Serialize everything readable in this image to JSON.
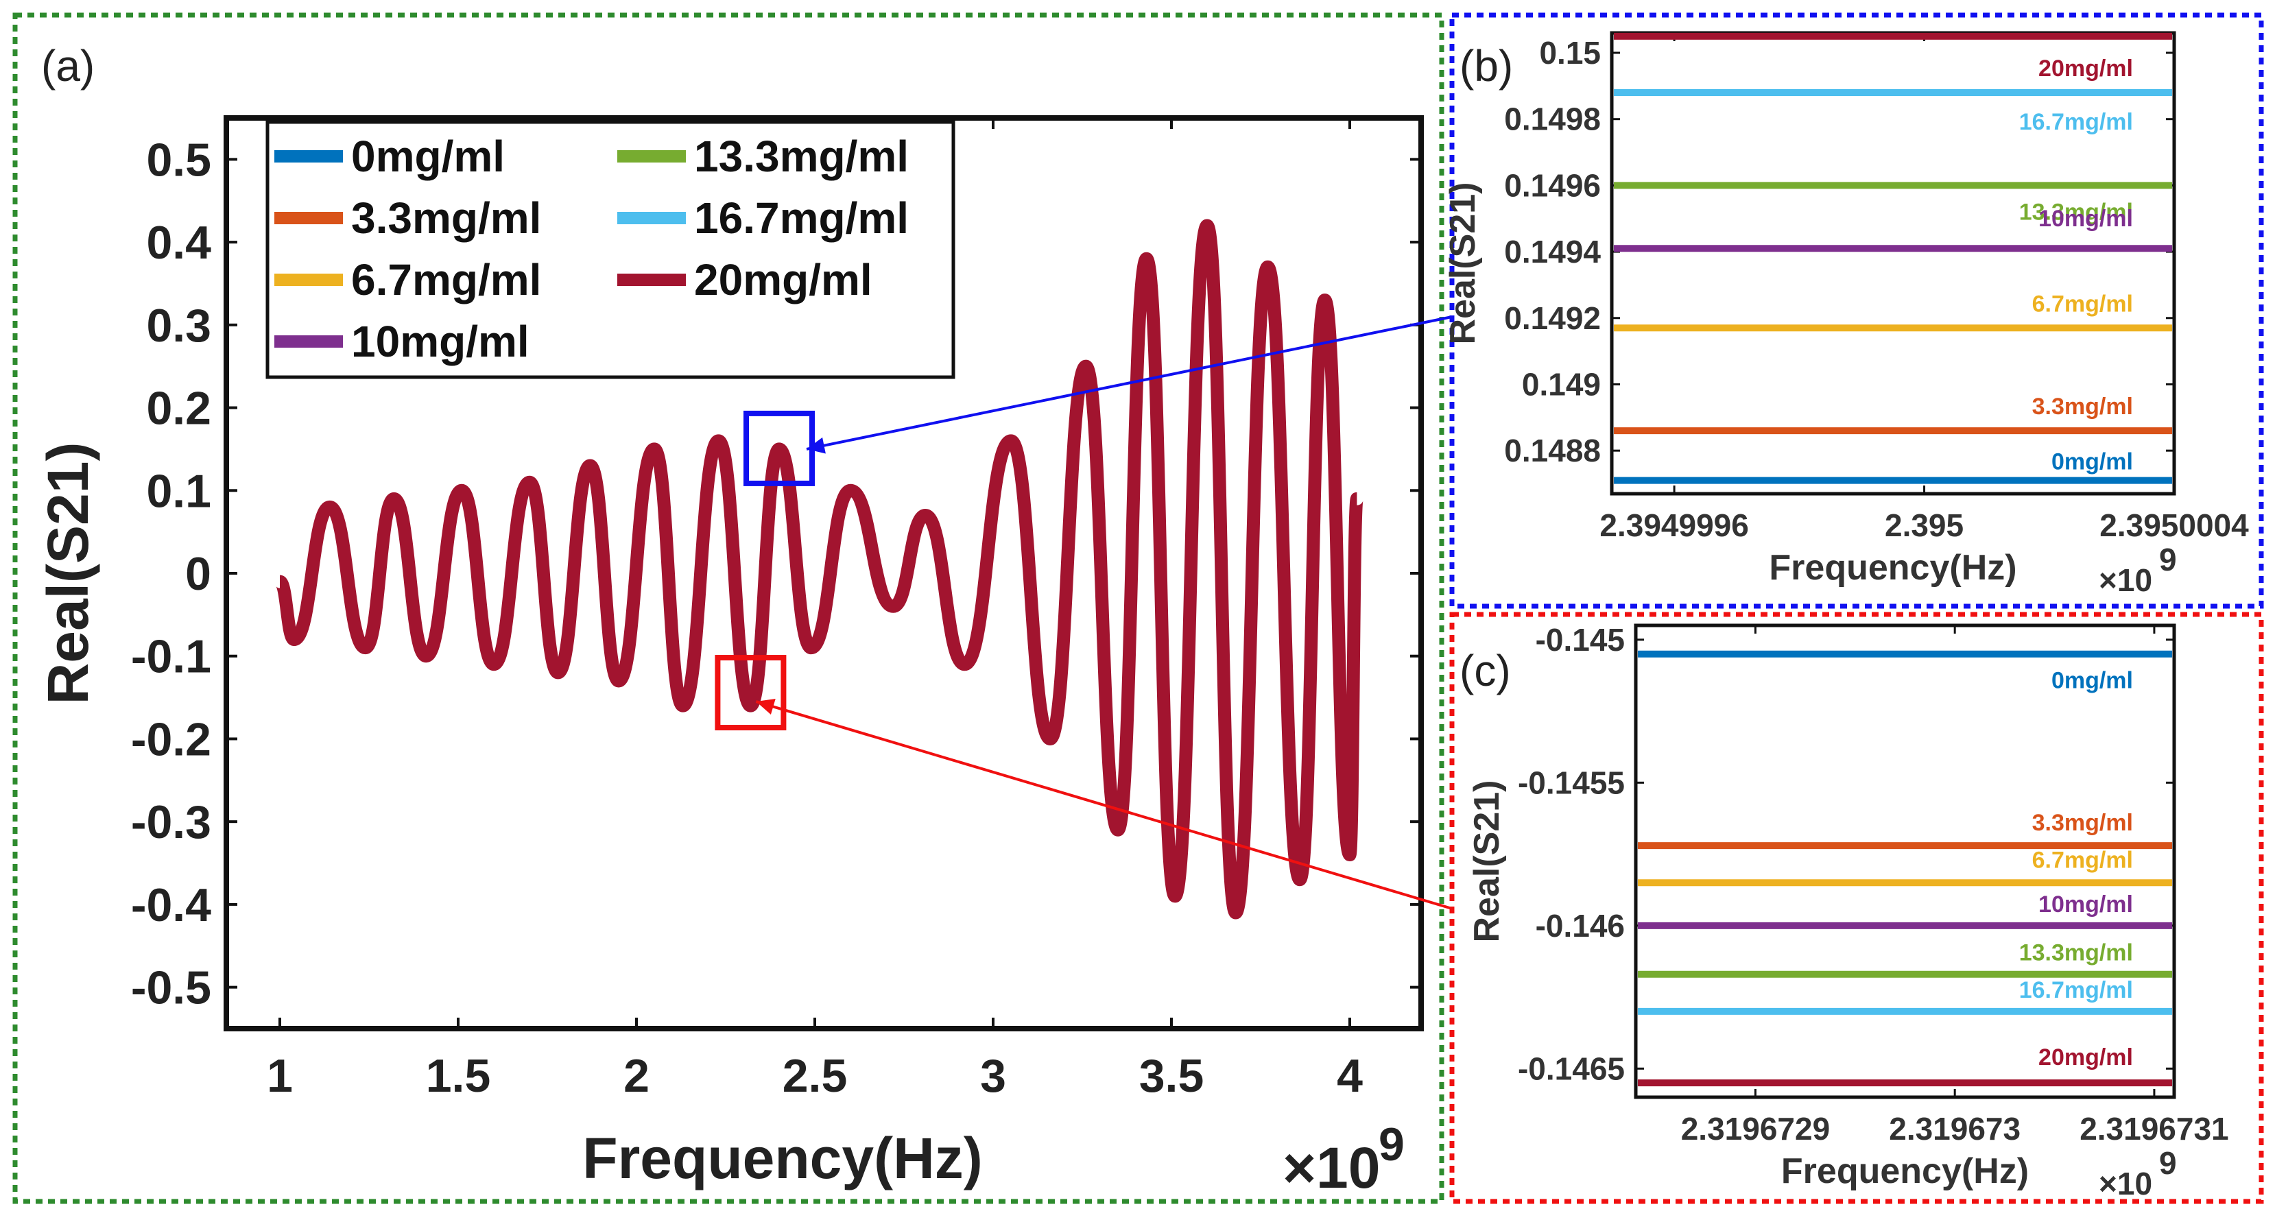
{
  "chart_data": [
    {
      "panel": "(a)",
      "type": "line",
      "xlabel": "Frequency(Hz)",
      "x_multiplier": "×10",
      "x_multiplier_exp": "9",
      "ylabel": "Real(S21)",
      "xlim": [
        0.85,
        4.2
      ],
      "ylim": [
        -0.55,
        0.55
      ],
      "grid": false,
      "legend_position": "top-left",
      "xticks": [
        1,
        1.5,
        2,
        2.5,
        3,
        3.5,
        4
      ],
      "xtick_labels": [
        "1",
        "1.5",
        "2",
        "2.5",
        "3",
        "3.5",
        "4"
      ],
      "yticks": [
        0.5,
        0.4,
        0.3,
        0.2,
        0.1,
        0,
        -0.1,
        -0.2,
        -0.3,
        -0.4,
        -0.5
      ],
      "ytick_labels": [
        "0.5",
        "0.4",
        "0.3",
        "0.2",
        "0.1",
        "0",
        "-0.1",
        "-0.2",
        "-0.3",
        "-0.4",
        "-0.5"
      ],
      "series": [
        {
          "name": "0mg/ml",
          "color": "#0072BD"
        },
        {
          "name": "3.3mg/ml",
          "color": "#D95319"
        },
        {
          "name": "6.7mg/ml",
          "color": "#EDB120"
        },
        {
          "name": "10mg/ml",
          "color": "#7E2F8E"
        },
        {
          "name": "13.3mg/ml",
          "color": "#77AC30"
        },
        {
          "name": "16.7mg/ml",
          "color": "#4DBEEE"
        },
        {
          "name": "20mg/ml",
          "color": "#A2142F"
        }
      ],
      "curve_x": [
        1.0,
        1.04,
        1.14,
        1.24,
        1.32,
        1.41,
        1.51,
        1.6,
        1.7,
        1.78,
        1.87,
        1.95,
        2.05,
        2.13,
        2.23,
        2.32,
        2.4,
        2.49,
        2.6,
        2.72,
        2.81,
        2.92,
        3.05,
        3.16,
        3.26,
        3.35,
        3.43,
        3.51,
        3.6,
        3.68,
        3.77,
        3.86,
        3.93,
        4.0
      ],
      "curve_y": [
        -0.01,
        -0.08,
        0.08,
        -0.09,
        0.09,
        -0.1,
        0.1,
        -0.11,
        0.11,
        -0.12,
        0.13,
        -0.13,
        0.15,
        -0.16,
        0.16,
        -0.16,
        0.15,
        -0.09,
        0.1,
        -0.04,
        0.07,
        -0.11,
        0.16,
        -0.2,
        0.25,
        -0.31,
        0.38,
        -0.39,
        0.42,
        -0.41,
        0.37,
        -0.37,
        0.33,
        -0.34
      ],
      "curve_tail": [
        4.02,
        0.09
      ],
      "zoom_boxes": [
        {
          "target": "(b)",
          "color": "#1010F0",
          "x_center": 2.4,
          "y_center": 0.15
        },
        {
          "target": "(c)",
          "color": "#F01010",
          "x_center": 2.32,
          "y_center": -0.145
        }
      ]
    },
    {
      "panel": "(b)",
      "type": "line",
      "xlabel": "Frequency(Hz)",
      "x_multiplier": "×10",
      "x_multiplier_exp": "9",
      "ylabel": "Real(S21)",
      "xlim": [
        2.3949995,
        2.3950004
      ],
      "ylim": [
        0.14867,
        0.15006
      ],
      "xticks": [
        2.3949996,
        2.395,
        2.3950004
      ],
      "xtick_labels": [
        "2.3949996",
        "2.395",
        "2.3950004"
      ],
      "yticks": [
        0.15,
        0.1498,
        0.1496,
        0.1494,
        0.1492,
        0.149,
        0.1488
      ],
      "ytick_labels": [
        "0.15",
        "0.1498",
        "0.1496",
        "0.1494",
        "0.1492",
        "0.149",
        "0.1488"
      ],
      "series": [
        {
          "name": "20mg/ml",
          "value": 0.15005,
          "color": "#A2142F"
        },
        {
          "name": "16.7mg/ml",
          "value": 0.14988,
          "color": "#4DBEEE"
        },
        {
          "name": "13.3mg/ml",
          "value": 0.1496,
          "color": "#77AC30"
        },
        {
          "name": "10mg/ml",
          "value": 0.14941,
          "color": "#7E2F8E"
        },
        {
          "name": "6.7mg/ml",
          "value": 0.14917,
          "color": "#EDB120"
        },
        {
          "name": "3.3mg/ml",
          "value": 0.14886,
          "color": "#D95319"
        },
        {
          "name": "0mg/ml",
          "value": 0.14871,
          "color": "#0072BD"
        }
      ]
    },
    {
      "panel": "(c)",
      "type": "line",
      "xlabel": "Frequency(Hz)",
      "x_multiplier": "×10",
      "x_multiplier_exp": "9",
      "ylabel": "Real(S21)",
      "xlim": [
        2.31967284,
        2.31967311
      ],
      "ylim": [
        -0.1466,
        -0.14495
      ],
      "xticks": [
        2.3196729,
        2.319673,
        2.3196731
      ],
      "xtick_labels": [
        "2.3196729",
        "2.319673",
        "2.3196731"
      ],
      "yticks": [
        -0.145,
        -0.1455,
        -0.146,
        -0.1465
      ],
      "ytick_labels": [
        "-0.145",
        "-0.1455",
        "-0.146",
        "-0.1465"
      ],
      "series": [
        {
          "name": "0mg/ml",
          "value": -0.14505,
          "color": "#0072BD"
        },
        {
          "name": "3.3mg/ml",
          "value": -0.14572,
          "color": "#D95319"
        },
        {
          "name": "6.7mg/ml",
          "value": -0.14585,
          "color": "#EDB120"
        },
        {
          "name": "10mg/ml",
          "value": -0.146,
          "color": "#7E2F8E"
        },
        {
          "name": "13.3mg/ml",
          "value": -0.14617,
          "color": "#77AC30"
        },
        {
          "name": "16.7mg/ml",
          "value": -0.1463,
          "color": "#4DBEEE"
        },
        {
          "name": "20mg/ml",
          "value": -0.14655,
          "color": "#A2142F"
        }
      ]
    }
  ]
}
